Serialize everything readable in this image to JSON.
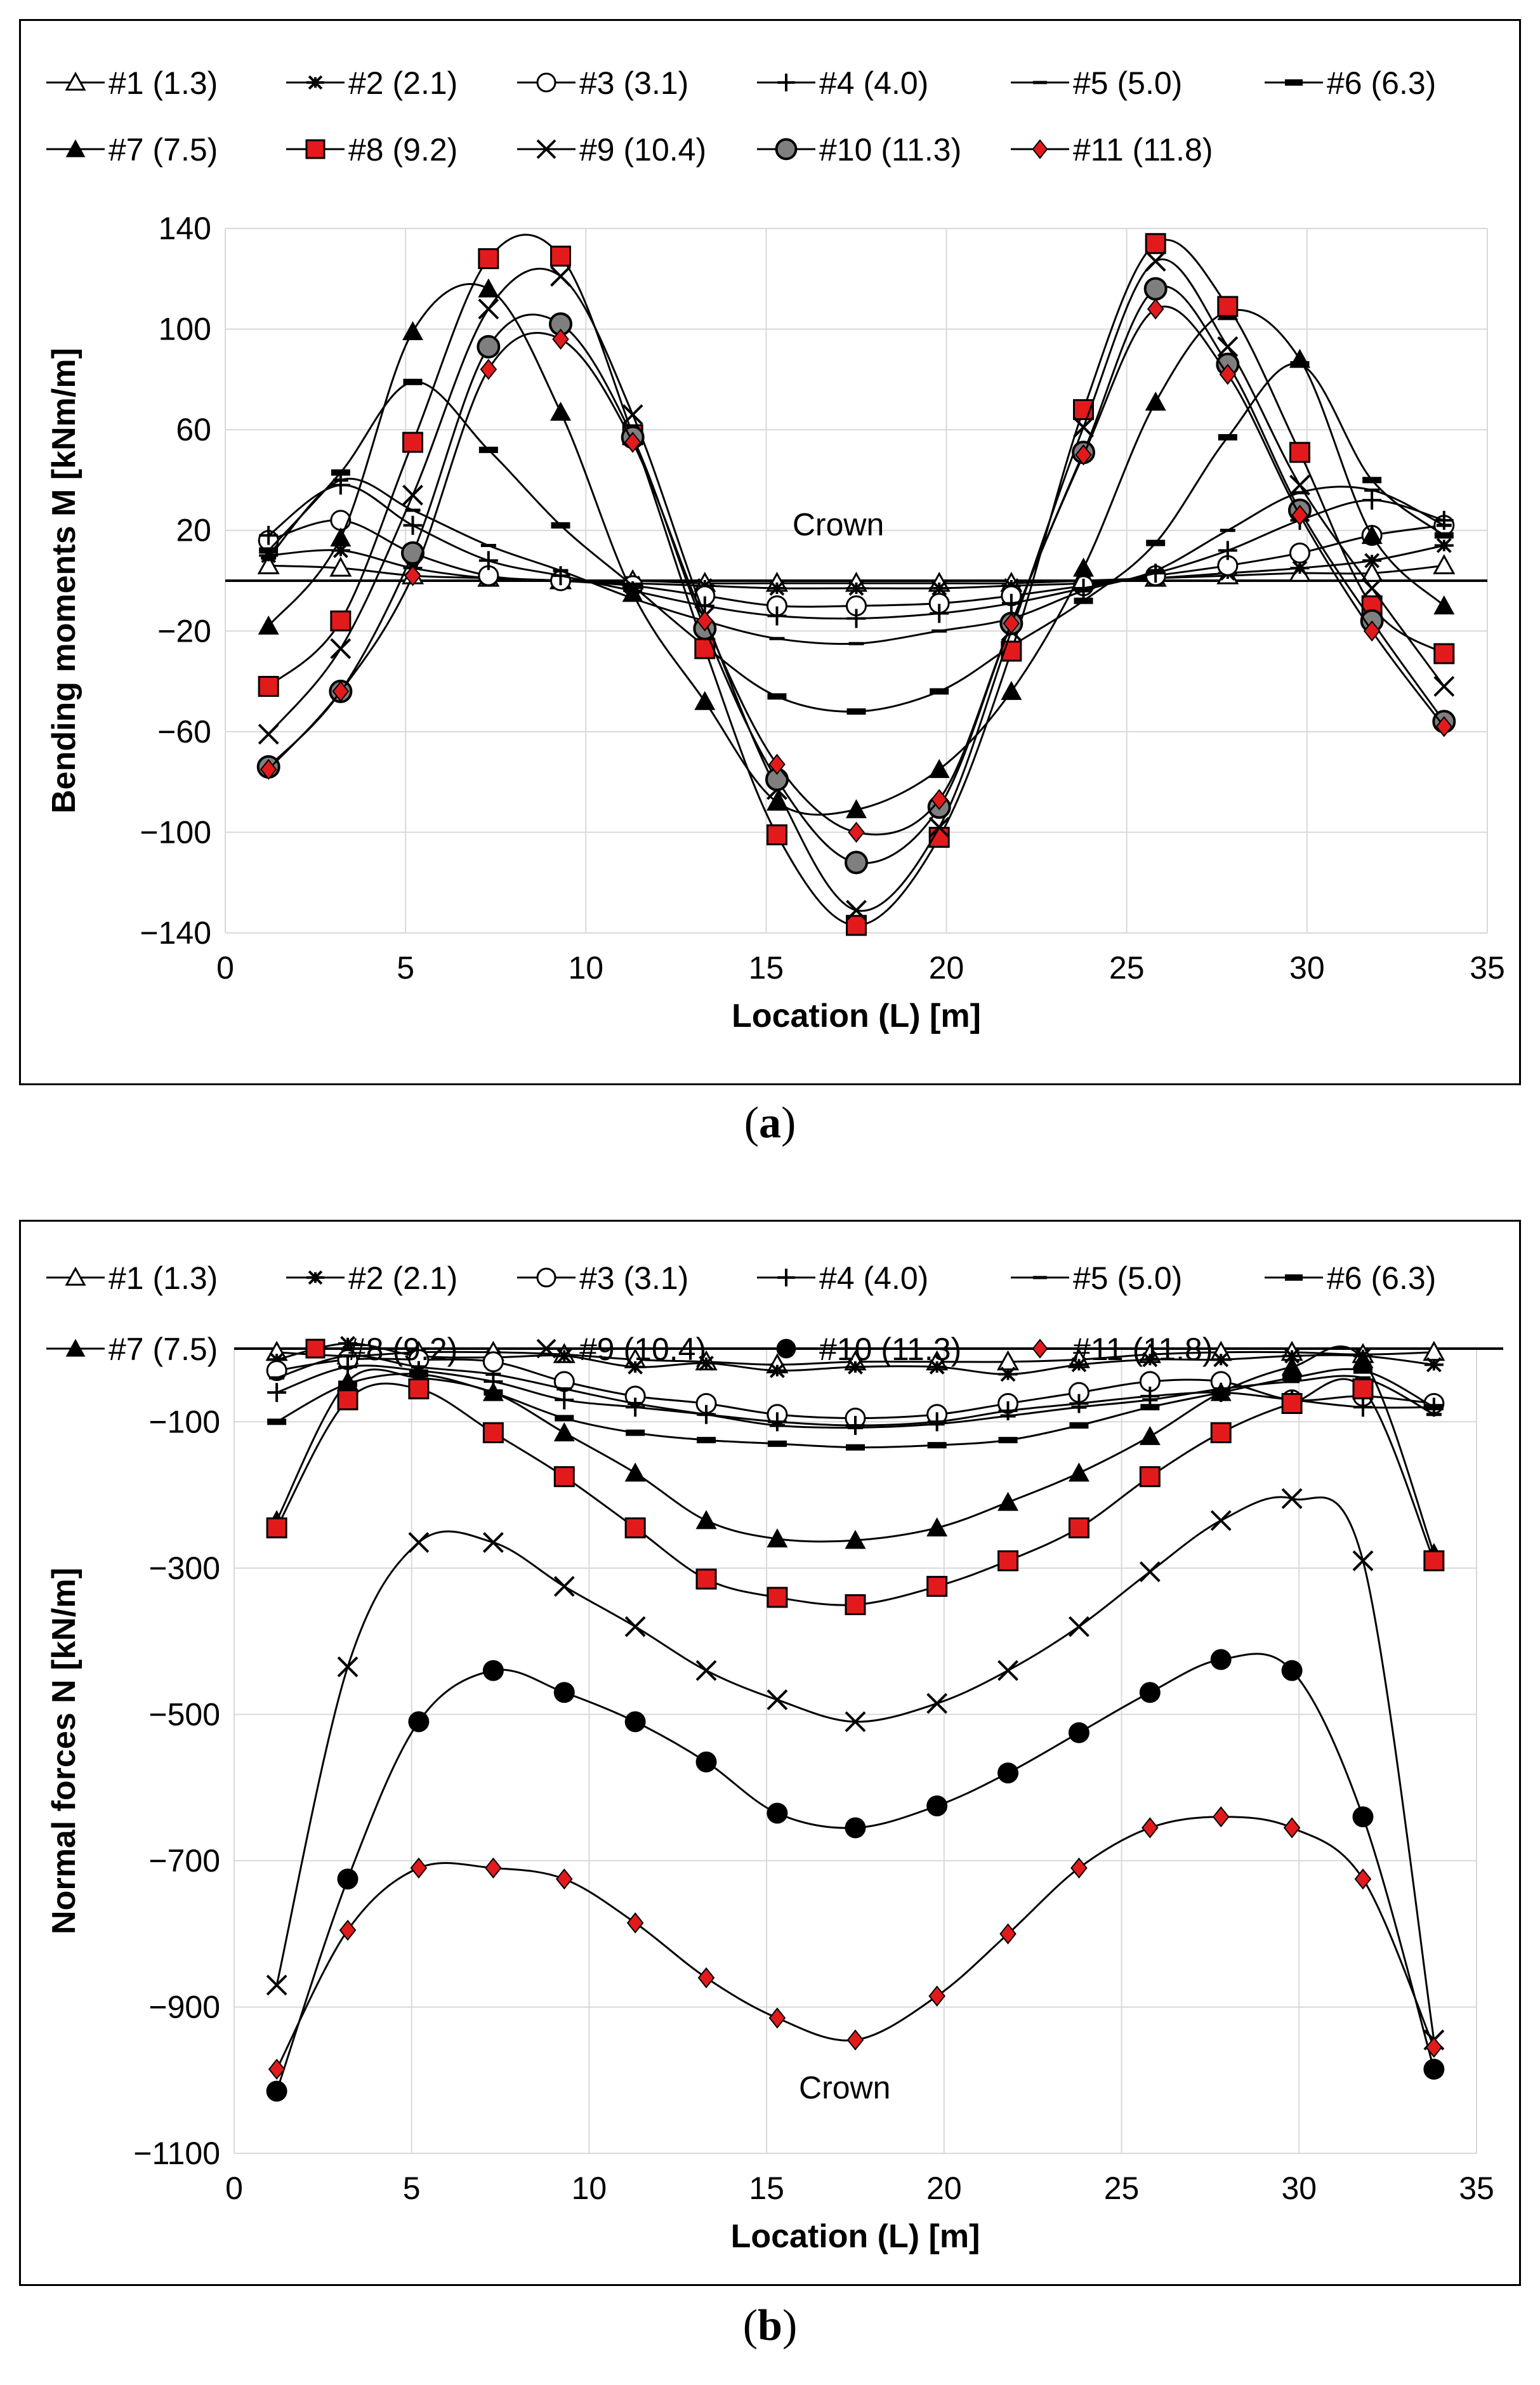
{
  "captions": [
    "a",
    "b"
  ],
  "chart_data": [
    {
      "type": "line",
      "id": "a",
      "xlabel": "Location (L) [m]",
      "ylabel": "Bending moments M [kNm/m]",
      "annotation": "Crown",
      "xlim": [
        0,
        35
      ],
      "ylim": [
        -140,
        140
      ],
      "xticks": [
        0,
        5,
        10,
        15,
        20,
        25,
        30,
        35
      ],
      "yticks": [
        -140,
        -100,
        -60,
        -20,
        20,
        60,
        100,
        140
      ],
      "ytick_labels": [
        "−140",
        "−100",
        "−60",
        "−20",
        "20",
        "60",
        "100",
        "140"
      ],
      "x": [
        1.2,
        3.2,
        5.2,
        7.3,
        9.3,
        11.3,
        13.3,
        15.3,
        17.5,
        19.8,
        21.8,
        23.8,
        25.8,
        27.8,
        29.8,
        31.8,
        33.8
      ],
      "series": [
        {
          "name": "#1 (1.3)",
          "marker": "triangle-open",
          "values": [
            6,
            5,
            2,
            1,
            0,
            0,
            -1,
            -1,
            -1,
            -1,
            -1,
            0,
            1,
            2,
            3,
            3,
            6
          ]
        },
        {
          "name": "#2 (2.1)",
          "marker": "star",
          "values": [
            10,
            12,
            5,
            1,
            0,
            -1,
            -2,
            -3,
            -3,
            -3,
            -2,
            -1,
            1,
            3,
            5,
            8,
            14
          ]
        },
        {
          "name": "#3 (3.1)",
          "marker": "circle-open",
          "values": [
            16,
            24,
            11,
            2,
            0,
            -2,
            -6,
            -10,
            -10,
            -9,
            -6,
            -2,
            2,
            6,
            11,
            18,
            22
          ]
        },
        {
          "name": "#4 (4.0)",
          "marker": "plus",
          "values": [
            18,
            38,
            22,
            8,
            2,
            -4,
            -10,
            -14,
            -15,
            -13,
            -9,
            -3,
            3,
            12,
            24,
            32,
            24
          ]
        },
        {
          "name": "#5 (5.0)",
          "marker": "dash",
          "values": [
            9,
            40,
            28,
            14,
            4,
            -7,
            -16,
            -23,
            -25,
            -20,
            -15,
            -4,
            4,
            20,
            35,
            36,
            22
          ]
        },
        {
          "name": "#6 (6.3)",
          "marker": "dash-bold",
          "values": [
            12,
            43,
            79,
            52,
            22,
            -2,
            -26,
            -46,
            -52,
            -44,
            -26,
            -8,
            15,
            57,
            86,
            40,
            18
          ]
        },
        {
          "name": "#7 (7.5)",
          "marker": "triangle-filled",
          "values": [
            -18,
            17,
            99,
            116,
            67,
            -5,
            -48,
            -88,
            -91,
            -75,
            -44,
            5,
            71,
            107,
            88,
            18,
            -10
          ]
        },
        {
          "name": "#8 (9.2)",
          "marker": "square-red",
          "values": [
            -42,
            -16,
            55,
            128,
            129,
            58,
            -27,
            -101,
            -137,
            -102,
            -28,
            68,
            134,
            109,
            51,
            -10,
            -29
          ]
        },
        {
          "name": "#9 (10.4)",
          "marker": "cross",
          "values": [
            -61,
            -27,
            34,
            108,
            121,
            66,
            -14,
            -83,
            -131,
            -98,
            -20,
            61,
            127,
            93,
            38,
            -3,
            -42
          ]
        },
        {
          "name": "#10 (11.3)",
          "marker": "circle-gray",
          "values": [
            -74,
            -44,
            11,
            93,
            102,
            57,
            -19,
            -79,
            -112,
            -90,
            -17,
            51,
            116,
            86,
            28,
            -16,
            -56
          ]
        },
        {
          "name": "#11 (11.8)",
          "marker": "diamond-red",
          "values": [
            -75,
            -44,
            2,
            84,
            96,
            55,
            -16,
            -73,
            -100,
            -87,
            -17,
            50,
            108,
            82,
            26,
            -20,
            -58
          ]
        }
      ]
    },
    {
      "type": "line",
      "id": "b",
      "xlabel": "Location (L) [m]",
      "ylabel": "Normal forces N [kN/m]",
      "annotation": "Crown",
      "xlim": [
        0,
        35
      ],
      "ylim": [
        -1100,
        0
      ],
      "xticks": [
        0,
        5,
        10,
        15,
        20,
        25,
        30,
        35
      ],
      "yticks": [
        -1100,
        -900,
        -700,
        -500,
        -300,
        -100
      ],
      "ytick_labels": [
        "−1100",
        "−900",
        "−700",
        "−500",
        "−300",
        "−100"
      ],
      "x": [
        1.2,
        3.2,
        5.2,
        7.3,
        9.3,
        11.3,
        13.3,
        15.3,
        17.5,
        19.8,
        21.8,
        23.8,
        25.8,
        27.8,
        29.8,
        31.8,
        33.8
      ],
      "series": [
        {
          "name": "#1 (1.3)",
          "marker": "triangle-open",
          "values": [
            -5,
            -10,
            -5,
            -5,
            -8,
            -15,
            -18,
            -22,
            -18,
            -18,
            -18,
            -15,
            -8,
            -5,
            -5,
            -8,
            -5
          ]
        },
        {
          "name": "#2 (2.1)",
          "marker": "star",
          "values": [
            -15,
            7,
            -10,
            -12,
            -10,
            -25,
            -20,
            -30,
            -25,
            -25,
            -35,
            -22,
            -15,
            -15,
            -10,
            -10,
            -22
          ]
        },
        {
          "name": "#3 (3.1)",
          "marker": "circle-open",
          "values": [
            -30,
            -15,
            -15,
            -18,
            -45,
            -65,
            -75,
            -90,
            -95,
            -90,
            -75,
            -60,
            -45,
            -45,
            -70,
            -65,
            -75
          ]
        },
        {
          "name": "#4 (4.0)",
          "marker": "plus",
          "values": [
            -60,
            -25,
            -30,
            -45,
            -70,
            -80,
            -90,
            -100,
            -105,
            -100,
            -85,
            -75,
            -65,
            -60,
            -70,
            -80,
            -80
          ]
        },
        {
          "name": "#5 (5.0)",
          "marker": "dash",
          "values": [
            -40,
            -10,
            -25,
            -35,
            -55,
            -75,
            -90,
            -105,
            -108,
            -103,
            -92,
            -80,
            -70,
            -55,
            -45,
            -40,
            -90
          ]
        },
        {
          "name": "#6 (6.3)",
          "marker": "dash-bold",
          "values": [
            -100,
            -48,
            -35,
            -60,
            -95,
            -115,
            -125,
            -130,
            -135,
            -132,
            -125,
            -105,
            -80,
            -60,
            -40,
            -30,
            -80
          ]
        },
        {
          "name": "#7 (7.5)",
          "marker": "triangle-filled",
          "values": [
            -235,
            -45,
            -40,
            -60,
            -115,
            -170,
            -235,
            -260,
            -262,
            -245,
            -210,
            -170,
            -120,
            -60,
            -25,
            -15,
            -280
          ]
        },
        {
          "name": "#8 (9.2)",
          "marker": "square-red",
          "values": [
            -245,
            -70,
            -55,
            -115,
            -175,
            -245,
            -315,
            -340,
            -350,
            -325,
            -290,
            -245,
            -175,
            -115,
            -75,
            -55,
            -290
          ]
        },
        {
          "name": "#9 (10.4)",
          "marker": "cross",
          "values": [
            -870,
            -435,
            -265,
            -265,
            -325,
            -380,
            -440,
            -480,
            -510,
            -485,
            -440,
            -380,
            -305,
            -235,
            -205,
            -290,
            -945
          ]
        },
        {
          "name": "#10 (11.3)",
          "marker": "circle-black",
          "values": [
            -1015,
            -725,
            -510,
            -440,
            -470,
            -510,
            -565,
            -635,
            -655,
            -625,
            -580,
            -525,
            -470,
            -425,
            -440,
            -640,
            -985
          ]
        },
        {
          "name": "#11 (11.8)",
          "marker": "diamond-red",
          "values": [
            -985,
            -795,
            -710,
            -710,
            -725,
            -785,
            -860,
            -915,
            -945,
            -885,
            -800,
            -710,
            -655,
            -640,
            -655,
            -725,
            -955
          ]
        }
      ]
    }
  ]
}
